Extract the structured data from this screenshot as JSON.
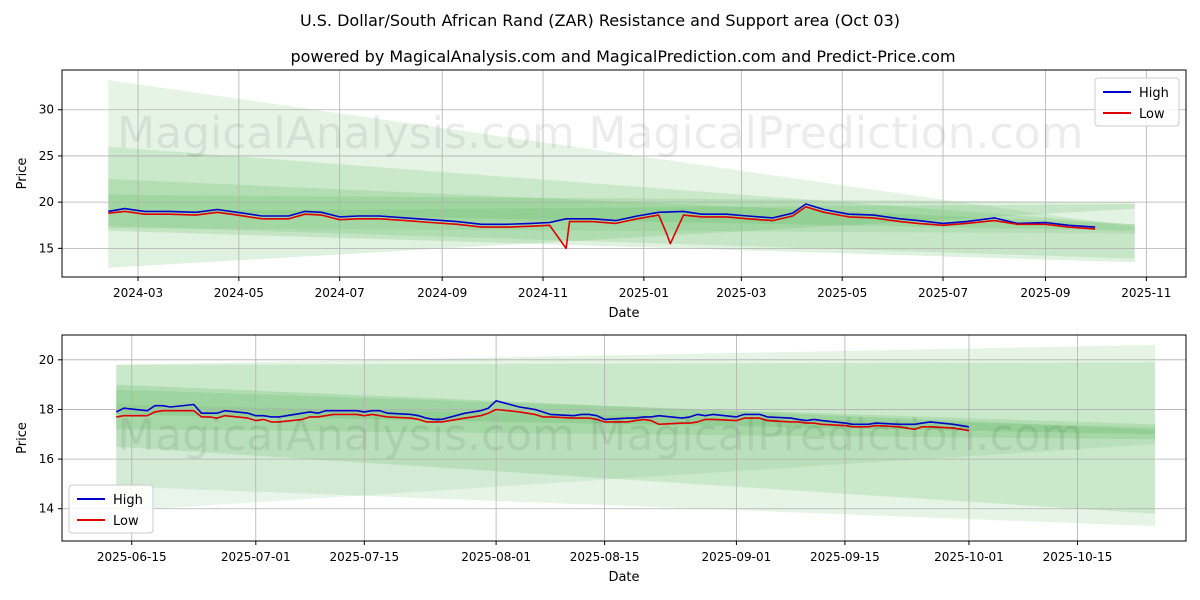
{
  "figure": {
    "title": "U.S. Dollar/South African Rand (ZAR) Resistance and Support area (Oct 03)",
    "subtitle": "powered by MagicalAnalysis.com and MagicalPrediction.com and Predict-Price.com",
    "watermarks": [
      "MagicalAnalysis.com",
      "MagicalPrediction.com"
    ]
  },
  "colors": {
    "high": "#0000cc",
    "low": "#e00000",
    "band": "#4caf50",
    "grid": "#b0b0b0"
  },
  "chart_data": [
    {
      "type": "line",
      "xlabel": "Date",
      "ylabel": "Price",
      "legend": "top-right",
      "grid": true,
      "xlim": [
        "2024-01-15",
        "2025-11-25"
      ],
      "ylim": [
        11.9,
        34.3
      ],
      "x_ticks": [
        "2024-03",
        "2024-05",
        "2024-07",
        "2024-09",
        "2024-11",
        "2025-01",
        "2025-03",
        "2025-05",
        "2025-07",
        "2025-09",
        "2025-11"
      ],
      "x_tick_dates": [
        "2024-03-01",
        "2024-05-01",
        "2024-07-01",
        "2024-09-01",
        "2024-11-01",
        "2025-01-01",
        "2025-03-01",
        "2025-05-01",
        "2025-07-01",
        "2025-09-01",
        "2025-11-01"
      ],
      "y_ticks": [
        15,
        20,
        25,
        30
      ],
      "bands": [
        {
          "x": [
            "2024-02-12",
            "2025-10-25"
          ],
          "upper": [
            33.2,
            17.3
          ],
          "lower": [
            17.2,
            16.6
          ],
          "alpha": 0.14
        },
        {
          "x": [
            "2024-02-12",
            "2025-10-25"
          ],
          "upper": [
            26.0,
            17.6
          ],
          "lower": [
            16.9,
            13.5
          ],
          "alpha": 0.18
        },
        {
          "x": [
            "2024-02-12",
            "2025-10-25"
          ],
          "upper": [
            20.8,
            20.0
          ],
          "lower": [
            12.9,
            19.3
          ],
          "alpha": 0.18
        },
        {
          "x": [
            "2024-02-12",
            "2025-10-25"
          ],
          "upper": [
            22.5,
            17.6
          ],
          "lower": [
            19.0,
            16.9
          ],
          "alpha": 0.18
        },
        {
          "x": [
            "2024-02-12",
            "2025-10-25"
          ],
          "upper": [
            19.0,
            19.8
          ],
          "lower": [
            17.4,
            13.9
          ],
          "alpha": 0.16
        }
      ],
      "series": [
        {
          "name": "High",
          "x": [
            "2024-02-12",
            "2024-02-22",
            "2024-03-05",
            "2024-03-20",
            "2024-04-05",
            "2024-04-18",
            "2024-04-30",
            "2024-05-15",
            "2024-05-31",
            "2024-06-10",
            "2024-06-20",
            "2024-07-01",
            "2024-07-12",
            "2024-07-25",
            "2024-08-10",
            "2024-08-25",
            "2024-09-10",
            "2024-09-25",
            "2024-10-10",
            "2024-10-25",
            "2024-11-05",
            "2024-11-15",
            "2024-12-01",
            "2024-12-15",
            "2024-12-28",
            "2025-01-10",
            "2025-01-25",
            "2025-02-05",
            "2025-02-20",
            "2025-03-05",
            "2025-03-20",
            "2025-04-01",
            "2025-04-09",
            "2025-04-20",
            "2025-05-05",
            "2025-05-20",
            "2025-06-05",
            "2025-06-16",
            "2025-07-01",
            "2025-07-15",
            "2025-08-01",
            "2025-08-15",
            "2025-09-01",
            "2025-09-15",
            "2025-10-01"
          ],
          "values": [
            19.0,
            19.3,
            19.0,
            19.0,
            18.9,
            19.2,
            18.9,
            18.5,
            18.5,
            19.0,
            18.9,
            18.4,
            18.5,
            18.5,
            18.3,
            18.1,
            17.9,
            17.6,
            17.6,
            17.7,
            17.8,
            18.2,
            18.2,
            18.0,
            18.5,
            18.9,
            19.0,
            18.7,
            18.7,
            18.5,
            18.3,
            18.8,
            19.8,
            19.2,
            18.7,
            18.6,
            18.2,
            18.0,
            17.7,
            17.9,
            18.3,
            17.7,
            17.8,
            17.5,
            17.3
          ]
        },
        {
          "name": "Low",
          "x": [
            "2024-02-12",
            "2024-02-22",
            "2024-03-05",
            "2024-03-20",
            "2024-04-05",
            "2024-04-18",
            "2024-04-30",
            "2024-05-15",
            "2024-05-31",
            "2024-06-10",
            "2024-06-20",
            "2024-07-01",
            "2024-07-12",
            "2024-07-25",
            "2024-08-10",
            "2024-08-25",
            "2024-09-10",
            "2024-09-25",
            "2024-10-10",
            "2024-10-25",
            "2024-11-05",
            "2024-11-15",
            "2024-11-17",
            "2024-12-01",
            "2024-12-15",
            "2024-12-28",
            "2025-01-10",
            "2025-01-15",
            "2025-01-17",
            "2025-01-25",
            "2025-02-05",
            "2025-02-20",
            "2025-03-05",
            "2025-03-20",
            "2025-04-01",
            "2025-04-09",
            "2025-04-20",
            "2025-05-05",
            "2025-05-20",
            "2025-06-05",
            "2025-06-16",
            "2025-07-01",
            "2025-07-15",
            "2025-08-01",
            "2025-08-15",
            "2025-09-01",
            "2025-09-15",
            "2025-10-01"
          ],
          "values": [
            18.8,
            19.0,
            18.7,
            18.7,
            18.6,
            18.9,
            18.6,
            18.2,
            18.2,
            18.7,
            18.6,
            18.1,
            18.2,
            18.2,
            18.0,
            17.8,
            17.6,
            17.3,
            17.3,
            17.4,
            17.5,
            15.0,
            17.9,
            17.9,
            17.7,
            18.2,
            18.6,
            16.5,
            15.5,
            18.6,
            18.4,
            18.4,
            18.2,
            18.0,
            18.5,
            19.5,
            18.9,
            18.4,
            18.3,
            17.9,
            17.7,
            17.5,
            17.7,
            18.0,
            17.6,
            17.6,
            17.3,
            17.1
          ]
        }
      ]
    },
    {
      "type": "line",
      "xlabel": "Date",
      "ylabel": "Price",
      "legend": "bottom-left",
      "grid": true,
      "xlim": [
        "2025-06-06",
        "2025-10-29"
      ],
      "ylim": [
        12.7,
        21.0
      ],
      "x_ticks": [
        "2025-06-15",
        "2025-07-01",
        "2025-07-15",
        "2025-08-01",
        "2025-08-15",
        "2025-09-01",
        "2025-09-15",
        "2025-10-01",
        "2025-10-15"
      ],
      "x_tick_dates": [
        "2025-06-15",
        "2025-07-01",
        "2025-07-15",
        "2025-08-01",
        "2025-08-15",
        "2025-09-01",
        "2025-09-15",
        "2025-10-01",
        "2025-10-15"
      ],
      "y_ticks": [
        14,
        16,
        18,
        20
      ],
      "bands": [
        {
          "x": [
            "2025-06-13",
            "2025-10-25"
          ],
          "upper": [
            19.8,
            20.6
          ],
          "lower": [
            14.9,
            13.3
          ],
          "alpha": 0.14
        },
        {
          "x": [
            "2025-06-13",
            "2025-10-25"
          ],
          "upper": [
            19.8,
            19.9
          ],
          "lower": [
            16.5,
            13.8
          ],
          "alpha": 0.18
        },
        {
          "x": [
            "2025-06-13",
            "2025-10-25"
          ],
          "upper": [
            19.0,
            17.2
          ],
          "lower": [
            17.8,
            17.0
          ],
          "alpha": 0.2
        },
        {
          "x": [
            "2025-06-13",
            "2025-10-25"
          ],
          "upper": [
            18.8,
            17.4
          ],
          "lower": [
            17.2,
            16.8
          ],
          "alpha": 0.18
        },
        {
          "x": [
            "2025-06-13",
            "2025-10-25"
          ],
          "upper": [
            18.2,
            17.3
          ],
          "lower": [
            13.9,
            16.6
          ],
          "alpha": 0.12
        }
      ],
      "series": [
        {
          "name": "High",
          "x": [
            "2025-06-13",
            "2025-06-14",
            "2025-06-17",
            "2025-06-18",
            "2025-06-19",
            "2025-06-20",
            "2025-06-23",
            "2025-06-24",
            "2025-06-25",
            "2025-06-26",
            "2025-06-27",
            "2025-06-30",
            "2025-07-01",
            "2025-07-02",
            "2025-07-03",
            "2025-07-04",
            "2025-07-07",
            "2025-07-08",
            "2025-07-09",
            "2025-07-10",
            "2025-07-11",
            "2025-07-14",
            "2025-07-15",
            "2025-07-16",
            "2025-07-17",
            "2025-07-18",
            "2025-07-21",
            "2025-07-22",
            "2025-07-23",
            "2025-07-24",
            "2025-07-25",
            "2025-07-28",
            "2025-07-29",
            "2025-07-30",
            "2025-07-31",
            "2025-08-01",
            "2025-08-04",
            "2025-08-05",
            "2025-08-06",
            "2025-08-07",
            "2025-08-08",
            "2025-08-11",
            "2025-08-12",
            "2025-08-13",
            "2025-08-14",
            "2025-08-15",
            "2025-08-18",
            "2025-08-19",
            "2025-08-20",
            "2025-08-21",
            "2025-08-22",
            "2025-08-25",
            "2025-08-26",
            "2025-08-27",
            "2025-08-28",
            "2025-08-29",
            "2025-09-01",
            "2025-09-02",
            "2025-09-03",
            "2025-09-04",
            "2025-09-05",
            "2025-09-08",
            "2025-09-09",
            "2025-09-10",
            "2025-09-11",
            "2025-09-12",
            "2025-09-15",
            "2025-09-16",
            "2025-09-17",
            "2025-09-18",
            "2025-09-19",
            "2025-09-22",
            "2025-09-23",
            "2025-09-24",
            "2025-09-25",
            "2025-09-26",
            "2025-09-29",
            "2025-09-30",
            "2025-10-01"
          ],
          "values": [
            17.9,
            18.05,
            17.95,
            18.15,
            18.15,
            18.1,
            18.2,
            17.85,
            17.85,
            17.85,
            17.95,
            17.85,
            17.75,
            17.75,
            17.7,
            17.7,
            17.85,
            17.9,
            17.85,
            17.95,
            17.95,
            17.95,
            17.9,
            17.95,
            17.95,
            17.85,
            17.8,
            17.75,
            17.65,
            17.6,
            17.6,
            17.85,
            17.9,
            17.95,
            18.05,
            18.35,
            18.1,
            18.05,
            18.0,
            17.9,
            17.8,
            17.75,
            17.8,
            17.8,
            17.75,
            17.6,
            17.65,
            17.65,
            17.7,
            17.7,
            17.75,
            17.65,
            17.7,
            17.8,
            17.75,
            17.8,
            17.7,
            17.8,
            17.8,
            17.8,
            17.7,
            17.65,
            17.6,
            17.55,
            17.6,
            17.55,
            17.45,
            17.4,
            17.4,
            17.4,
            17.45,
            17.4,
            17.4,
            17.4,
            17.45,
            17.5,
            17.4,
            17.35,
            17.3
          ]
        },
        {
          "name": "Low",
          "x": [
            "2025-06-13",
            "2025-06-14",
            "2025-06-17",
            "2025-06-18",
            "2025-06-19",
            "2025-06-20",
            "2025-06-23",
            "2025-06-24",
            "2025-06-25",
            "2025-06-26",
            "2025-06-27",
            "2025-06-30",
            "2025-07-01",
            "2025-07-02",
            "2025-07-03",
            "2025-07-04",
            "2025-07-07",
            "2025-07-08",
            "2025-07-09",
            "2025-07-10",
            "2025-07-11",
            "2025-07-14",
            "2025-07-15",
            "2025-07-16",
            "2025-07-17",
            "2025-07-18",
            "2025-07-21",
            "2025-07-22",
            "2025-07-23",
            "2025-07-24",
            "2025-07-25",
            "2025-07-28",
            "2025-07-29",
            "2025-07-30",
            "2025-07-31",
            "2025-08-01",
            "2025-08-04",
            "2025-08-05",
            "2025-08-06",
            "2025-08-07",
            "2025-08-08",
            "2025-08-11",
            "2025-08-12",
            "2025-08-13",
            "2025-08-14",
            "2025-08-15",
            "2025-08-18",
            "2025-08-19",
            "2025-08-20",
            "2025-08-21",
            "2025-08-22",
            "2025-08-25",
            "2025-08-26",
            "2025-08-27",
            "2025-08-28",
            "2025-08-29",
            "2025-09-01",
            "2025-09-02",
            "2025-09-03",
            "2025-09-04",
            "2025-09-05",
            "2025-09-08",
            "2025-09-09",
            "2025-09-10",
            "2025-09-11",
            "2025-09-12",
            "2025-09-15",
            "2025-09-16",
            "2025-09-17",
            "2025-09-18",
            "2025-09-19",
            "2025-09-22",
            "2025-09-23",
            "2025-09-24",
            "2025-09-25",
            "2025-09-26",
            "2025-09-29",
            "2025-09-30",
            "2025-10-01"
          ],
          "values": [
            17.7,
            17.75,
            17.75,
            17.9,
            17.95,
            17.95,
            17.95,
            17.7,
            17.7,
            17.65,
            17.75,
            17.65,
            17.55,
            17.6,
            17.5,
            17.5,
            17.6,
            17.7,
            17.7,
            17.75,
            17.8,
            17.8,
            17.75,
            17.8,
            17.75,
            17.7,
            17.65,
            17.6,
            17.5,
            17.5,
            17.5,
            17.65,
            17.7,
            17.75,
            17.85,
            18.0,
            17.9,
            17.85,
            17.8,
            17.7,
            17.7,
            17.65,
            17.65,
            17.65,
            17.6,
            17.5,
            17.5,
            17.55,
            17.6,
            17.55,
            17.4,
            17.45,
            17.45,
            17.5,
            17.6,
            17.6,
            17.55,
            17.65,
            17.65,
            17.65,
            17.55,
            17.5,
            17.5,
            17.45,
            17.45,
            17.4,
            17.35,
            17.3,
            17.3,
            17.3,
            17.35,
            17.3,
            17.25,
            17.2,
            17.3,
            17.3,
            17.25,
            17.2,
            17.15
          ]
        }
      ]
    }
  ]
}
